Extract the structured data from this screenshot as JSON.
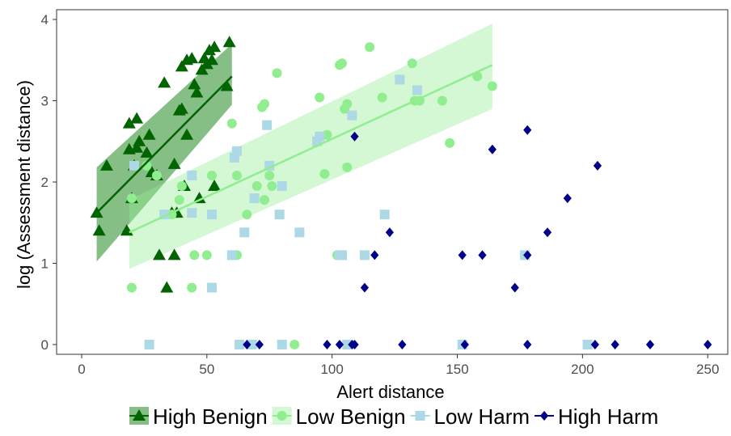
{
  "chart_data": {
    "type": "scatter",
    "xlabel": "Alert distance",
    "ylabel": "log (Assessment distance)",
    "xlim": [
      -10,
      258
    ],
    "ylim": [
      -0.12,
      4.12
    ],
    "x_ticks": [
      0,
      50,
      100,
      150,
      200,
      250
    ],
    "y_ticks": [
      0,
      1,
      2,
      3,
      4
    ],
    "x_tick_labels": [
      "0",
      "50",
      "100",
      "150",
      "200",
      "250"
    ],
    "y_tick_labels": [
      "0",
      "1",
      "2",
      "3",
      "4"
    ],
    "grid": false,
    "legend_position": "bottom",
    "series": [
      {
        "name": "High Benign",
        "marker": "triangle",
        "color": "#006400",
        "points": [
          [
            6,
            1.62
          ],
          [
            7,
            1.4
          ],
          [
            10,
            2.2
          ],
          [
            18,
            1.4
          ],
          [
            19,
            2.4
          ],
          [
            19,
            2.72
          ],
          [
            20,
            1.8
          ],
          [
            21,
            2.2
          ],
          [
            22,
            2.42
          ],
          [
            22,
            2.78
          ],
          [
            23,
            2.5
          ],
          [
            26,
            2.36
          ],
          [
            27,
            2.58
          ],
          [
            28,
            2.12
          ],
          [
            30,
            2.08
          ],
          [
            31,
            1.1
          ],
          [
            33,
            3.22
          ],
          [
            34,
            0.7
          ],
          [
            36,
            1.62
          ],
          [
            37,
            1.1
          ],
          [
            37,
            2.22
          ],
          [
            38,
            1.62
          ],
          [
            39,
            2.88
          ],
          [
            40,
            3.42
          ],
          [
            40,
            2.9
          ],
          [
            41,
            1.95
          ],
          [
            42,
            2.58
          ],
          [
            42,
            3.5
          ],
          [
            44,
            3.52
          ],
          [
            45,
            3.2
          ],
          [
            46,
            3.1
          ],
          [
            47,
            1.8
          ],
          [
            48,
            3.38
          ],
          [
            49,
            3.52
          ],
          [
            50,
            3.45
          ],
          [
            51,
            3.62
          ],
          [
            52,
            3.5
          ],
          [
            53,
            3.66
          ],
          [
            53,
            1.95
          ],
          [
            58,
            3.18
          ],
          [
            59,
            3.72
          ]
        ],
        "trend": {
          "x": [
            6,
            60
          ],
          "y": [
            1.62,
            3.3
          ],
          "ci_low": [
            1.02,
            2.95
          ],
          "ci_high": [
            2.18,
            3.7
          ]
        }
      },
      {
        "name": "Low Benign",
        "marker": "circle",
        "color": "#90ee90",
        "points": [
          [
            20,
            0.7
          ],
          [
            20,
            1.8
          ],
          [
            26,
            2.2
          ],
          [
            30,
            2.08
          ],
          [
            36,
            1.6
          ],
          [
            39,
            1.78
          ],
          [
            40,
            1.95
          ],
          [
            44,
            0.7
          ],
          [
            45,
            1.1
          ],
          [
            50,
            1.1
          ],
          [
            52,
            2.08
          ],
          [
            60,
            2.72
          ],
          [
            62,
            1.1
          ],
          [
            62,
            2.08
          ],
          [
            66,
            1.6
          ],
          [
            70,
            1.95
          ],
          [
            72,
            2.92
          ],
          [
            73,
            2.96
          ],
          [
            73,
            1.78
          ],
          [
            75,
            2.08
          ],
          [
            76,
            1.95
          ],
          [
            78,
            3.34
          ],
          [
            85,
            0.0
          ],
          [
            95,
            3.04
          ],
          [
            97,
            2.1
          ],
          [
            98,
            2.58
          ],
          [
            102,
            1.1
          ],
          [
            103,
            3.44
          ],
          [
            104,
            3.46
          ],
          [
            105,
            2.9
          ],
          [
            106,
            2.18
          ],
          [
            106,
            2.96
          ],
          [
            115,
            3.66
          ],
          [
            120,
            3.04
          ],
          [
            132,
            3.46
          ],
          [
            133,
            3.0
          ],
          [
            135,
            3.0
          ],
          [
            144,
            3.0
          ],
          [
            147,
            2.48
          ],
          [
            158,
            3.3
          ],
          [
            164,
            3.18
          ]
        ],
        "trend": {
          "x": [
            19,
            164
          ],
          "y": [
            1.38,
            3.44
          ],
          "ci_low": [
            0.93,
            2.9
          ],
          "ci_high": [
            1.78,
            3.95
          ]
        }
      },
      {
        "name": "Low Harm",
        "marker": "square",
        "color": "#add8e6",
        "points": [
          [
            21,
            2.2
          ],
          [
            27,
            0.0
          ],
          [
            33,
            1.6
          ],
          [
            44,
            2.08
          ],
          [
            44,
            1.62
          ],
          [
            52,
            0.7
          ],
          [
            52,
            1.6
          ],
          [
            60,
            1.1
          ],
          [
            61,
            2.3
          ],
          [
            62,
            2.38
          ],
          [
            63,
            0.0
          ],
          [
            65,
            1.38
          ],
          [
            68,
            0.0
          ],
          [
            69,
            1.8
          ],
          [
            74,
            2.7
          ],
          [
            75,
            2.2
          ],
          [
            79,
            1.6
          ],
          [
            80,
            1.95
          ],
          [
            80,
            0.0
          ],
          [
            87,
            1.38
          ],
          [
            94,
            2.5
          ],
          [
            95,
            2.56
          ],
          [
            103,
            1.1
          ],
          [
            104,
            1.1
          ],
          [
            106,
            0.0
          ],
          [
            108,
            2.82
          ],
          [
            113,
            1.1
          ],
          [
            121,
            1.6
          ],
          [
            127,
            3.26
          ],
          [
            134,
            3.13
          ],
          [
            152,
            0.0
          ],
          [
            177,
            1.1
          ],
          [
            202,
            0.0
          ]
        ]
      },
      {
        "name": "High Harm",
        "marker": "diamond",
        "color": "#00008b",
        "points": [
          [
            66,
            0.0
          ],
          [
            71,
            0.0
          ],
          [
            98,
            0.0
          ],
          [
            103,
            0.0
          ],
          [
            108,
            0.0
          ],
          [
            109,
            2.56
          ],
          [
            109,
            0.0
          ],
          [
            113,
            0.7
          ],
          [
            117,
            1.1
          ],
          [
            123,
            1.38
          ],
          [
            128,
            0.0
          ],
          [
            152,
            1.1
          ],
          [
            153,
            0.0
          ],
          [
            160,
            1.1
          ],
          [
            164,
            2.4
          ],
          [
            173,
            0.7
          ],
          [
            178,
            2.64
          ],
          [
            178,
            0.0
          ],
          [
            178,
            1.1
          ],
          [
            186,
            1.38
          ],
          [
            194,
            1.8
          ],
          [
            205,
            0.0
          ],
          [
            206,
            2.2
          ],
          [
            213,
            0.0
          ],
          [
            227,
            0.0
          ],
          [
            250,
            0.0
          ]
        ]
      }
    ]
  }
}
